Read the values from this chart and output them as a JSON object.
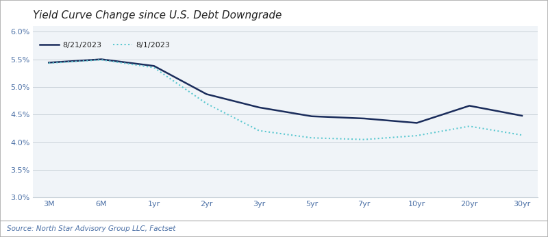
{
  "title": "Yield Curve Change since U.S. Debt Downgrade",
  "source": "Source: North Star Advisory Group LLC, Factset",
  "x_labels": [
    "3M",
    "6M",
    "1yr",
    "2yr",
    "3yr",
    "5yr",
    "7yr",
    "10yr",
    "20yr",
    "30yr"
  ],
  "x_positions": [
    0,
    1,
    2,
    3,
    4,
    5,
    6,
    7,
    8,
    9
  ],
  "series1_label": "8/21/2023",
  "series2_label": "8/1/2023",
  "series1_values": [
    5.44,
    5.5,
    5.38,
    4.87,
    4.63,
    4.47,
    4.43,
    4.35,
    4.66,
    4.48
  ],
  "series2_values": [
    5.43,
    5.49,
    5.35,
    4.7,
    4.21,
    4.08,
    4.05,
    4.12,
    4.29,
    4.13
  ],
  "series1_color": "#1a2c5b",
  "series2_color": "#5bc8d0",
  "ylim_min": 3.0,
  "ylim_max": 6.1,
  "yticks": [
    3.0,
    3.5,
    4.0,
    4.5,
    5.0,
    5.5,
    6.0
  ],
  "bg_color": "#ffffff",
  "plot_bg_color": "#f0f4f8",
  "grid_color": "#c8d0d8",
  "title_fontsize": 11,
  "source_fontsize": 7.5,
  "tick_label_color": "#4a6fa5",
  "source_color": "#4a6fa5",
  "border_color": "#aaaaaa"
}
